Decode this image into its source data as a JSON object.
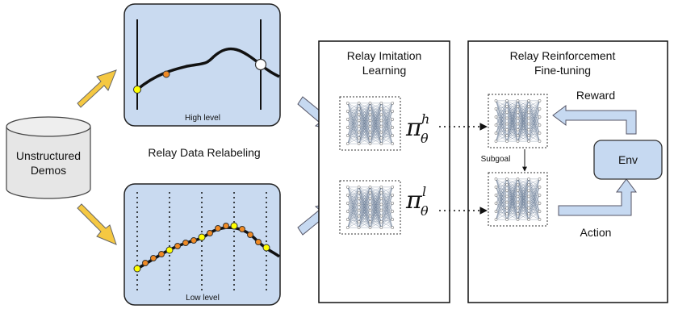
{
  "left_node": {
    "line1": "Unstructured",
    "line2": "Demos"
  },
  "relabel_caption": "Relay Data Relabeling",
  "high_panel": {
    "label": "High level"
  },
  "low_panel": {
    "label": "Low level"
  },
  "imitation_box": {
    "title_line1": "Relay Imitation",
    "title_line2": "Learning"
  },
  "rl_box": {
    "title_line1": "Relay Reinforcement",
    "title_line2": "Fine-tuning"
  },
  "policy_high": {
    "symbol": "π",
    "superscript": "h",
    "subscript": "θ"
  },
  "policy_low": {
    "symbol": "π",
    "superscript": "l",
    "subscript": "θ"
  },
  "subgoal_label": "Subgoal",
  "reward_label": "Reward",
  "action_label": "Action",
  "env_label": "Env",
  "colors": {
    "panel_fill": "#c9daf0",
    "arrow_yellow": "#f5c842",
    "arrow_blue": "#c6d9f1",
    "point_orange": "#f08a24",
    "point_yellow": "#ffff00",
    "env_fill": "#c6d9f1"
  }
}
